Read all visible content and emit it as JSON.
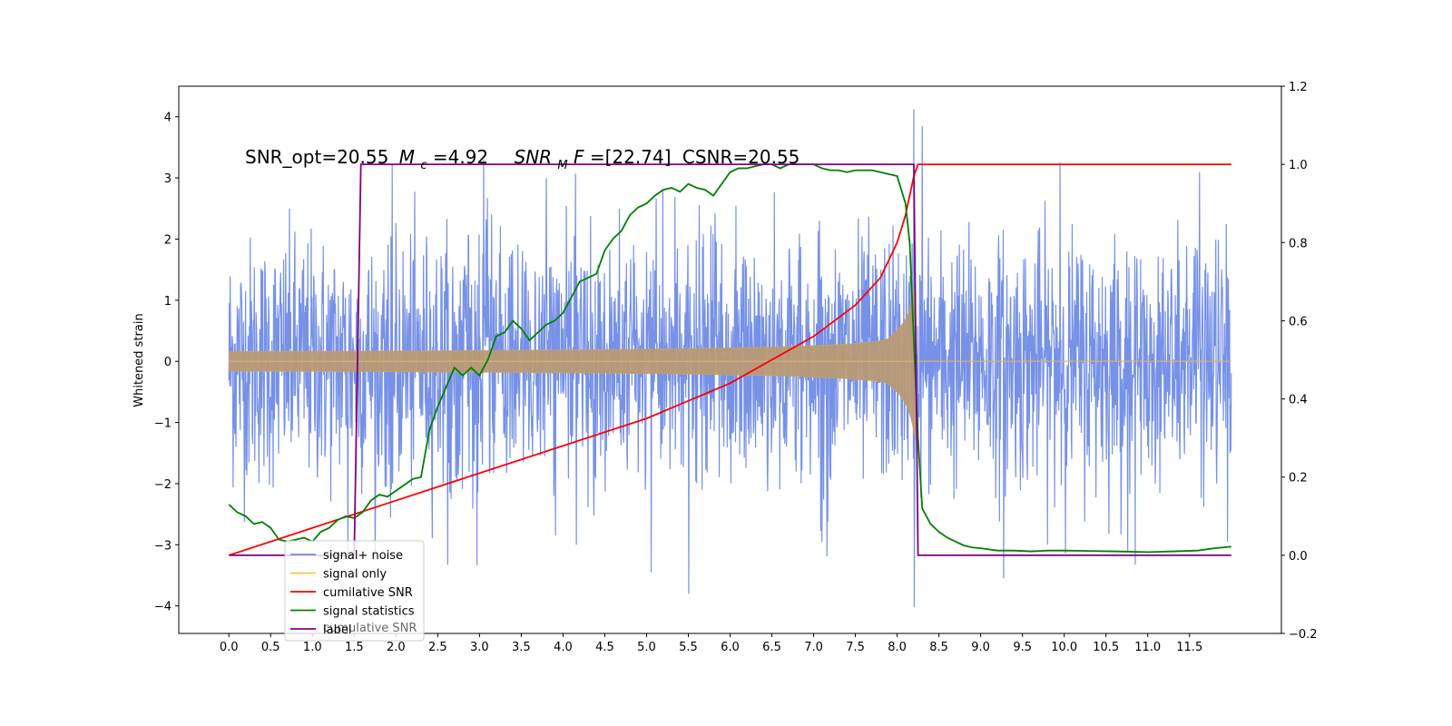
{
  "chart_data": {
    "type": "line",
    "ylabel": "Whitened strain",
    "annotation_parts": {
      "snr_opt": "SNR_opt=20.55",
      "mc_sym": "M",
      "mc_sub": "c",
      "mc_val": "=4.92",
      "snrm_sym": "SNR",
      "snrm_sub": "M",
      "snrm_f": "F",
      "snrm_val": "=[22.74]",
      "csnr": "CSNR=20.55"
    },
    "xlim": [
      -0.6,
      12.6
    ],
    "ylim_left": [
      -4.45,
      4.5
    ],
    "ylim_right": [
      -0.2,
      1.2
    ],
    "x_ticks": [
      "0.0",
      "0.5",
      "1.0",
      "1.5",
      "2.0",
      "2.5",
      "3.0",
      "3.5",
      "4.0",
      "4.5",
      "5.0",
      "5.5",
      "6.0",
      "6.5",
      "7.0",
      "7.5",
      "8.0",
      "8.5",
      "9.0",
      "9.5",
      "10.0",
      "10.5",
      "11.0",
      "11.5"
    ],
    "y_ticks_left": [
      "−4",
      "−3",
      "−2",
      "−1",
      "0",
      "1",
      "2",
      "3",
      "4"
    ],
    "y_ticks_right": [
      "−0.2",
      "0.0",
      "0.2",
      "0.4",
      "0.6",
      "0.8",
      "1.0",
      "1.2"
    ],
    "signal_noise": {
      "name": "signal+ noise",
      "color": "#6f8be6",
      "x_range": [
        0.0,
        12.0
      ],
      "envelope_rms": 1.0,
      "peaks": [
        {
          "x": 8.2,
          "y": 4.12
        },
        {
          "x": 8.2,
          "y": -4.02
        },
        {
          "x": 8.3,
          "y": 3.85
        },
        {
          "x": 5.5,
          "y": -3.8
        },
        {
          "x": 5.05,
          "y": -3.45
        },
        {
          "x": 9.27,
          "y": -3.55
        },
        {
          "x": 1.42,
          "y": -3.25
        },
        {
          "x": 3.05,
          "y": 3.3
        },
        {
          "x": 9.95,
          "y": 3.25
        },
        {
          "x": 11.95,
          "y": -2.95
        }
      ]
    },
    "signal_only": {
      "name": "signal only",
      "color": "#ffbb55",
      "x_range": [
        0.0,
        8.22
      ],
      "amplitude_start": 0.02,
      "amplitude_end": 1.6
    },
    "cumulative_snr": {
      "name": "cumilative SNR",
      "color": "#ff0000",
      "x": [
        0.0,
        1.0,
        2.0,
        3.0,
        4.0,
        5.0,
        6.0,
        7.0,
        7.5,
        7.8,
        8.0,
        8.1,
        8.2,
        8.25,
        12.0
      ],
      "y": [
        0.0,
        0.07,
        0.14,
        0.21,
        0.28,
        0.35,
        0.44,
        0.56,
        0.64,
        0.71,
        0.8,
        0.87,
        0.97,
        1.0,
        1.0
      ]
    },
    "signal_statistics": {
      "name": "signal statistics",
      "color": "#008000",
      "x": [
        0.0,
        0.1,
        0.2,
        0.3,
        0.4,
        0.5,
        0.6,
        0.7,
        0.8,
        0.9,
        1.0,
        1.1,
        1.2,
        1.3,
        1.4,
        1.5,
        1.6,
        1.7,
        1.8,
        1.9,
        2.0,
        2.1,
        2.2,
        2.3,
        2.4,
        2.5,
        2.6,
        2.7,
        2.8,
        2.9,
        3.0,
        3.1,
        3.2,
        3.3,
        3.4,
        3.5,
        3.6,
        3.7,
        3.8,
        3.9,
        4.0,
        4.1,
        4.2,
        4.3,
        4.4,
        4.5,
        4.6,
        4.7,
        4.8,
        4.9,
        5.0,
        5.1,
        5.2,
        5.3,
        5.4,
        5.5,
        5.6,
        5.7,
        5.8,
        5.9,
        6.0,
        6.1,
        6.2,
        6.3,
        6.4,
        6.5,
        6.6,
        6.7,
        6.8,
        6.9,
        7.0,
        7.1,
        7.2,
        7.3,
        7.4,
        7.5,
        7.6,
        7.7,
        7.8,
        7.9,
        8.0,
        8.1,
        8.15,
        8.2,
        8.25,
        8.3,
        8.4,
        8.5,
        8.6,
        8.7,
        8.8,
        8.9,
        9.0,
        9.2,
        9.4,
        9.6,
        9.8,
        10.0,
        10.3,
        10.6,
        11.0,
        11.3,
        11.6,
        11.8,
        12.0
      ],
      "y": [
        0.13,
        0.11,
        0.1,
        0.08,
        0.085,
        0.07,
        0.04,
        0.035,
        0.04,
        0.045,
        0.035,
        0.06,
        0.07,
        0.09,
        0.1,
        0.095,
        0.11,
        0.14,
        0.155,
        0.15,
        0.165,
        0.18,
        0.195,
        0.2,
        0.32,
        0.38,
        0.43,
        0.48,
        0.46,
        0.48,
        0.46,
        0.5,
        0.56,
        0.57,
        0.6,
        0.58,
        0.55,
        0.57,
        0.59,
        0.6,
        0.62,
        0.66,
        0.7,
        0.71,
        0.72,
        0.78,
        0.81,
        0.83,
        0.87,
        0.89,
        0.9,
        0.92,
        0.935,
        0.94,
        0.93,
        0.95,
        0.94,
        0.935,
        0.92,
        0.95,
        0.98,
        0.99,
        0.99,
        0.995,
        1.0,
        1.0,
        0.99,
        1.0,
        1.0,
        1.0,
        1.0,
        0.99,
        0.985,
        0.985,
        0.98,
        0.985,
        0.985,
        0.985,
        0.98,
        0.975,
        0.97,
        0.9,
        0.8,
        0.55,
        0.3,
        0.12,
        0.08,
        0.06,
        0.045,
        0.035,
        0.025,
        0.02,
        0.018,
        0.012,
        0.012,
        0.01,
        0.012,
        0.012,
        0.011,
        0.01,
        0.008,
        0.01,
        0.012,
        0.018,
        0.022
      ]
    },
    "label": {
      "name": "label",
      "color": "#800080",
      "x": [
        0.0,
        1.5,
        1.58,
        8.2,
        8.25,
        12.0
      ],
      "y": [
        0.0,
        0.0,
        1.0,
        1.0,
        0.0,
        0.0
      ]
    },
    "legend_placement": "lower-left",
    "legend_overlap_text": "cumulative SNR"
  }
}
